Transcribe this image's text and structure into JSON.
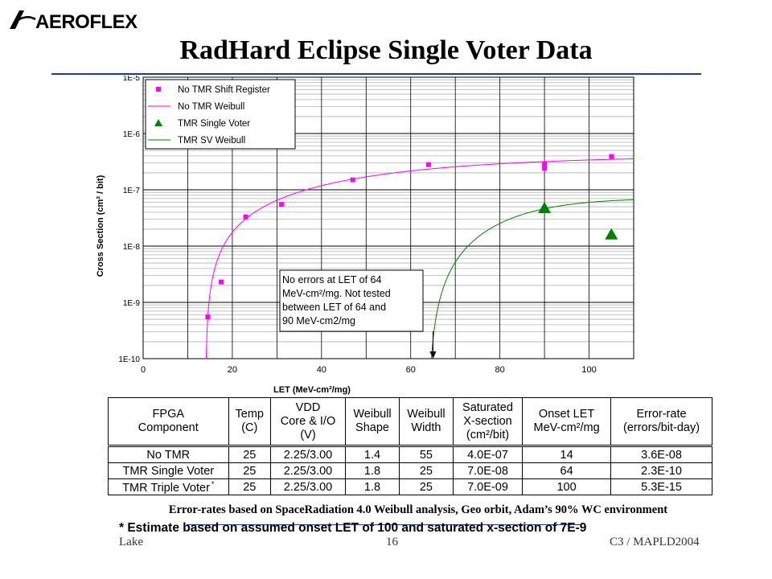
{
  "logo_text": "AEROFLEX",
  "title": "RadHard Eclipse Single Voter Data",
  "chart_data": {
    "type": "scatter",
    "title": "",
    "xlabel": "LET (MeV-cm²/mg)",
    "ylabel": "Cross Section (cm² / bit)",
    "xlim": [
      0,
      110
    ],
    "ylim": [
      1e-10,
      1e-05
    ],
    "ylog": true,
    "xticks": [
      0,
      20,
      40,
      60,
      80,
      100
    ],
    "ytick_labels": [
      "1E-10",
      "1E-9",
      "1E-8",
      "1E-7",
      "1E-6",
      "1E-5"
    ],
    "grid": true,
    "legend_position": "top-left",
    "series": [
      {
        "name": "No TMR Shift Register",
        "kind": "points",
        "marker": "square",
        "color": "#ff00ff",
        "x": [
          14.5,
          17.5,
          23,
          31,
          47,
          64,
          90,
          90,
          105
        ],
        "y": [
          5.5e-10,
          2.3e-09,
          3.3e-08,
          5.5e-08,
          1.5e-07,
          2.8e-07,
          2.4e-07,
          2.9e-07,
          3.9e-07
        ]
      },
      {
        "name": "No TMR Weibull",
        "kind": "line",
        "color": "#ff00ff",
        "onset": 14,
        "saturation": 4e-07,
        "width": 55,
        "shape": 1.4,
        "xmax": 112
      },
      {
        "name": "TMR Single Voter",
        "kind": "points",
        "marker": "triangle",
        "color": "#008000",
        "x": [
          90,
          105
        ],
        "y": [
          4.7e-08,
          1.6e-08
        ]
      },
      {
        "name": "TMR SV Weibull",
        "kind": "line",
        "color": "#008000",
        "onset": 64,
        "saturation": 7e-08,
        "width": 25,
        "shape": 1.8,
        "xmax": 112
      }
    ],
    "annotation": {
      "lines": [
        "No errors at LET of 64",
        "MeV-cm²/mg.  Not tested",
        "between LET of 64 and",
        "90 MeV-cm2/mg"
      ],
      "arrow_to_x": 65,
      "arrow_to_y": 1e-10
    }
  },
  "table": {
    "headers": [
      [
        "FPGA",
        "Component"
      ],
      [
        "Temp",
        "(C)"
      ],
      [
        "VDD",
        "Core & I/O",
        "(V)"
      ],
      [
        "Weibull",
        "Shape"
      ],
      [
        "Weibull",
        "Width"
      ],
      [
        "Saturated",
        "X-section",
        "(cm²/bit)"
      ],
      [
        "Onset LET",
        "MeV-cm²/mg"
      ],
      [
        "Error-rate",
        "(errors/bit-day)"
      ]
    ],
    "rows": [
      [
        "No TMR",
        "25",
        "2.25/3.00",
        "1.4",
        "55",
        "4.0E-07",
        "14",
        "3.6E-08"
      ],
      [
        "TMR Single Voter",
        "25",
        "2.25/3.00",
        "1.8",
        "25",
        "7.0E-08",
        "64",
        "2.3E-10"
      ],
      [
        "TMR Triple Voter",
        "25",
        "2.25/3.00",
        "1.8",
        "25",
        "7.0E-09",
        "100",
        "5.3E-15"
      ]
    ],
    "estimate_marker": "*"
  },
  "footnote_error_rates": "Error-rates based on SpaceRadiation 4.0 Weibull analysis, Geo orbit, Adam’s 90% WC environment",
  "footnote_estimate": "* Estimate based on assumed onset LET of 100 and saturated x-section of 7E-9",
  "footer": {
    "left": "Lake",
    "center": "16",
    "right": "C3 / MAPLD2004"
  }
}
